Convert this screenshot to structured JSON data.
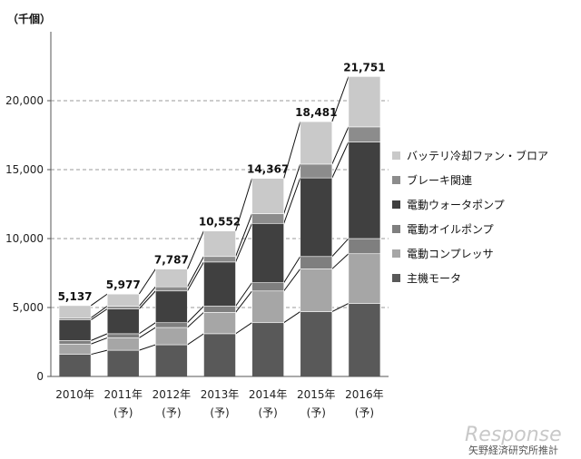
{
  "chart_data": {
    "type": "bar",
    "stacked": true,
    "unit_label": "（千個）",
    "categories": [
      [
        "2010年"
      ],
      [
        "2011年",
        "(予)"
      ],
      [
        "2012年",
        "(予)"
      ],
      [
        "2013年",
        "(予)"
      ],
      [
        "2014年",
        "(予)"
      ],
      [
        "2015年",
        "(予)"
      ],
      [
        "2016年",
        "(予)"
      ]
    ],
    "ylim": [
      0,
      25000
    ],
    "yticks": [
      0,
      5000,
      10000,
      15000,
      20000
    ],
    "ytick_labels": [
      "0",
      "5,000",
      "10,000",
      "15,000",
      "20,000"
    ],
    "totals": [
      5137,
      5977,
      7787,
      10552,
      14367,
      18481,
      21751
    ],
    "total_labels": [
      "5,137",
      "5,977",
      "7,787",
      "10,552",
      "14,367",
      "18,481",
      "21,751"
    ],
    "series": [
      {
        "name": "主機モータ",
        "color": "#595959",
        "values": [
          1600,
          1900,
          2300,
          3100,
          3900,
          4700,
          5300
        ]
      },
      {
        "name": "電動コンプレッサ",
        "color": "#a6a6a6",
        "values": [
          750,
          900,
          1250,
          1550,
          2300,
          3100,
          3600
        ]
      },
      {
        "name": "電動オイルポンプ",
        "color": "#7f7f7f",
        "values": [
          250,
          300,
          350,
          450,
          600,
          900,
          1100
        ]
      },
      {
        "name": "電動ウォータポンプ",
        "color": "#404040",
        "values": [
          1500,
          1800,
          2300,
          3200,
          4300,
          5700,
          7000
        ]
      },
      {
        "name": "ブレーキ関連",
        "color": "#8c8c8c",
        "values": [
          150,
          200,
          300,
          400,
          700,
          1000,
          1100
        ]
      },
      {
        "name": "バッテリ冷却ファン・ブロア",
        "color": "#c9c9c9",
        "values": [
          887,
          877,
          1287,
          1852,
          2567,
          3081,
          3651
        ]
      }
    ],
    "legend_order": [
      "バッテリ冷却ファン・ブロア",
      "ブレーキ関連",
      "電動ウォータポンプ",
      "電動オイルポンプ",
      "電動コンプレッサ",
      "主機モータ"
    ],
    "legend_position": "right",
    "grid": "dashed-horizontal"
  },
  "watermark": {
    "brand": "Response",
    "source": "矢野経済研究所推計"
  }
}
